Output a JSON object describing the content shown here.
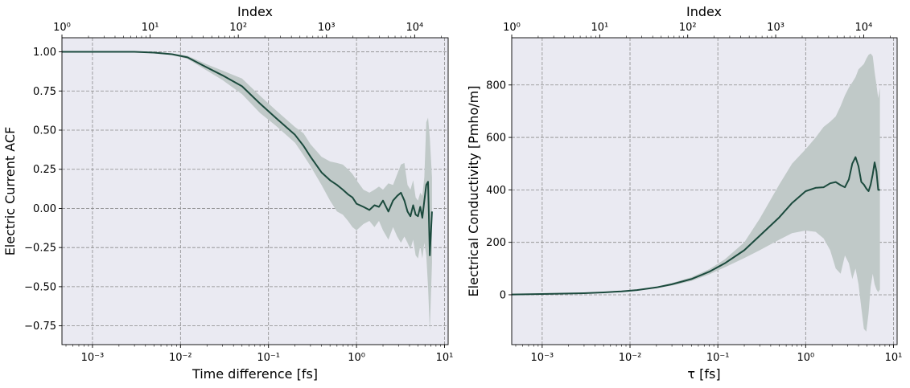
{
  "chart_data": [
    {
      "type": "line",
      "xlabel": "Time difference [fs]",
      "ylabel": "Electric Current ACF",
      "top_xlabel": "Index",
      "xscale": "log",
      "top_xscale": "log",
      "xlim": [
        0.00045,
        11
      ],
      "ylim": [
        -0.87,
        1.09
      ],
      "top_xlim": [
        1,
        24000
      ],
      "grid": true,
      "xticks": [
        {
          "value": 0.001,
          "label": "10⁻³"
        },
        {
          "value": 0.01,
          "label": "10⁻²"
        },
        {
          "value": 0.1,
          "label": "10⁻¹"
        },
        {
          "value": 1,
          "label": "10⁰"
        },
        {
          "value": 10,
          "label": "10¹"
        }
      ],
      "top_xticks": [
        {
          "value": 1,
          "label": "10⁰"
        },
        {
          "value": 10,
          "label": "10¹"
        },
        {
          "value": 100,
          "label": "10²"
        },
        {
          "value": 1000,
          "label": "10³"
        },
        {
          "value": 10000,
          "label": "10⁴"
        }
      ],
      "yticks": [
        {
          "value": 1.0,
          "label": "1.00"
        },
        {
          "value": 0.75,
          "label": "0.75"
        },
        {
          "value": 0.5,
          "label": "0.50"
        },
        {
          "value": 0.25,
          "label": "0.25"
        },
        {
          "value": 0.0,
          "label": "0.00"
        },
        {
          "value": -0.25,
          "label": "−0.25"
        },
        {
          "value": -0.5,
          "label": "−0.50"
        },
        {
          "value": -0.75,
          "label": "−0.75"
        }
      ],
      "series": [
        {
          "color": "#1b4a3d",
          "band_color": "#c0c9c8",
          "x": [
            0.00045,
            0.001,
            0.003,
            0.005,
            0.008,
            0.012,
            0.02,
            0.03,
            0.05,
            0.08,
            0.12,
            0.2,
            0.25,
            0.3,
            0.4,
            0.5,
            0.6,
            0.7,
            0.8,
            0.9,
            1.0,
            1.2,
            1.4,
            1.6,
            1.8,
            2.0,
            2.3,
            2.6,
            2.9,
            3.2,
            3.5,
            3.8,
            4.1,
            4.4,
            4.7,
            5.0,
            5.3,
            5.6,
            5.9,
            6.2,
            6.5,
            6.8,
            7.2
          ],
          "y": [
            1.0,
            1.0,
            1.0,
            0.995,
            0.985,
            0.965,
            0.9,
            0.85,
            0.78,
            0.67,
            0.58,
            0.47,
            0.4,
            0.33,
            0.23,
            0.18,
            0.15,
            0.12,
            0.09,
            0.07,
            0.03,
            0.01,
            -0.01,
            0.02,
            0.01,
            0.05,
            -0.02,
            0.05,
            0.08,
            0.1,
            0.05,
            -0.02,
            -0.05,
            0.02,
            -0.04,
            -0.05,
            0.01,
            -0.06,
            0.05,
            0.15,
            0.17,
            -0.3,
            -0.02
          ],
          "upper": [
            1.0,
            1.0,
            1.0,
            1.0,
            0.99,
            0.975,
            0.92,
            0.88,
            0.83,
            0.72,
            0.63,
            0.52,
            0.48,
            0.41,
            0.33,
            0.3,
            0.29,
            0.28,
            0.25,
            0.22,
            0.18,
            0.12,
            0.1,
            0.12,
            0.14,
            0.12,
            0.16,
            0.15,
            0.22,
            0.28,
            0.29,
            0.15,
            0.12,
            0.18,
            0.07,
            0.05,
            0.1,
            0.08,
            0.2,
            0.55,
            0.58,
            0.45,
            0.2
          ],
          "lower": [
            1.0,
            1.0,
            1.0,
            0.99,
            0.98,
            0.955,
            0.88,
            0.82,
            0.73,
            0.61,
            0.53,
            0.42,
            0.34,
            0.27,
            0.15,
            0.05,
            -0.02,
            -0.04,
            -0.08,
            -0.12,
            -0.14,
            -0.1,
            -0.08,
            -0.12,
            -0.08,
            -0.14,
            -0.2,
            -0.12,
            -0.18,
            -0.22,
            -0.18,
            -0.22,
            -0.26,
            -0.2,
            -0.3,
            -0.32,
            -0.24,
            -0.32,
            -0.22,
            -0.3,
            -0.5,
            -0.78,
            -0.35
          ]
        }
      ]
    },
    {
      "type": "line",
      "xlabel": "τ [fs]",
      "ylabel": "Electrical Conductivity [Pmho/m]",
      "top_xlabel": "Index",
      "xscale": "log",
      "top_xscale": "log",
      "xlim": [
        0.00045,
        11
      ],
      "ylim": [
        -190,
        980
      ],
      "top_xlim": [
        1,
        24000
      ],
      "grid": true,
      "xticks": [
        {
          "value": 0.001,
          "label": "10⁻³"
        },
        {
          "value": 0.01,
          "label": "10⁻²"
        },
        {
          "value": 0.1,
          "label": "10⁻¹"
        },
        {
          "value": 1,
          "label": "10⁰"
        },
        {
          "value": 10,
          "label": "10¹"
        }
      ],
      "top_xticks": [
        {
          "value": 1,
          "label": "10⁰"
        },
        {
          "value": 10,
          "label": "10¹"
        },
        {
          "value": 100,
          "label": "10²"
        },
        {
          "value": 1000,
          "label": "10³"
        },
        {
          "value": 10000,
          "label": "10⁴"
        }
      ],
      "yticks": [
        {
          "value": 800,
          "label": "800"
        },
        {
          "value": 600,
          "label": "600"
        },
        {
          "value": 400,
          "label": "400"
        },
        {
          "value": 200,
          "label": "200"
        },
        {
          "value": 0,
          "label": "0"
        }
      ],
      "series": [
        {
          "color": "#1b4a3d",
          "band_color": "#c0c9c8",
          "x": [
            0.00045,
            0.001,
            0.003,
            0.005,
            0.008,
            0.012,
            0.02,
            0.03,
            0.05,
            0.08,
            0.12,
            0.2,
            0.3,
            0.5,
            0.7,
            1.0,
            1.3,
            1.6,
            1.9,
            2.2,
            2.5,
            2.8,
            3.1,
            3.4,
            3.7,
            4.0,
            4.3,
            4.6,
            4.9,
            5.2,
            5.5,
            5.8,
            6.1,
            6.4,
            6.7,
            7.0
          ],
          "y": [
            1,
            3,
            6,
            9,
            13,
            18,
            28,
            40,
            60,
            88,
            120,
            170,
            225,
            295,
            350,
            395,
            408,
            410,
            425,
            430,
            418,
            410,
            440,
            500,
            525,
            490,
            430,
            420,
            405,
            395,
            420,
            460,
            505,
            470,
            400,
            400
          ],
          "upper": [
            1,
            3,
            7,
            10,
            14,
            20,
            31,
            45,
            67,
            98,
            135,
            200,
            290,
            420,
            500,
            555,
            600,
            640,
            660,
            680,
            720,
            760,
            790,
            810,
            830,
            860,
            870,
            880,
            900,
            915,
            920,
            910,
            850,
            800,
            750,
            790
          ],
          "lower": [
            1,
            3,
            5,
            8,
            12,
            16,
            25,
            35,
            53,
            78,
            105,
            140,
            170,
            210,
            235,
            245,
            240,
            215,
            170,
            100,
            80,
            150,
            120,
            60,
            100,
            40,
            -50,
            -130,
            -140,
            -70,
            30,
            80,
            40,
            20,
            10,
            20
          ]
        }
      ]
    }
  ]
}
